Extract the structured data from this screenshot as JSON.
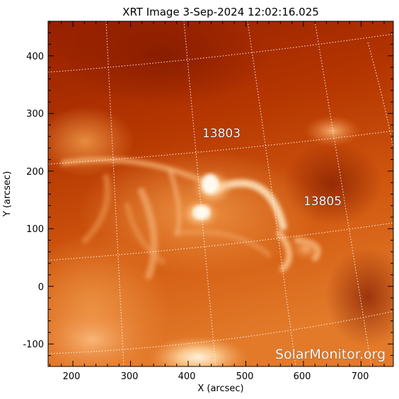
{
  "title": "XRT Image   3-Sep-2024  12:02:16.025",
  "x_axis": {
    "label": "X (arcsec)",
    "ticks": [
      "200",
      "300",
      "400",
      "500",
      "600",
      "700"
    ],
    "range": [
      157,
      756
    ]
  },
  "y_axis": {
    "label": "Y (arcsec)",
    "ticks": [
      "-100",
      "0",
      "100",
      "200",
      "300",
      "400"
    ],
    "range": [
      -139,
      460
    ]
  },
  "regions": [
    {
      "id": "13803",
      "label": "13803"
    },
    {
      "id": "13805",
      "label": "13805"
    }
  ],
  "watermark": "SolarMonitor.org",
  "colors": {
    "background_dark": "#9e2400",
    "mid": "#d2560e",
    "bright": "#ffe6c0",
    "grid": "#ffffff"
  }
}
